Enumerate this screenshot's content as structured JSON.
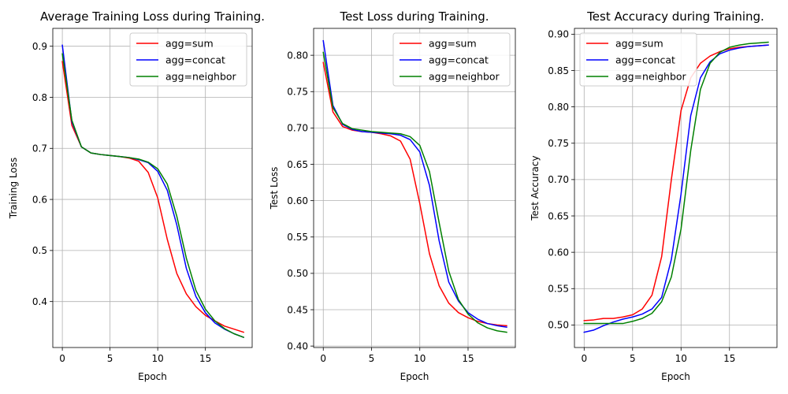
{
  "chart_data": [
    {
      "type": "line",
      "title": "Average Training Loss during Training.",
      "xlabel": "Epoch",
      "ylabel": "Training Loss",
      "xlim": [
        -1,
        19.9
      ],
      "ylim": [
        0.31,
        0.935
      ],
      "xticks": [
        0,
        5,
        10,
        15
      ],
      "yticks": [
        0.4,
        0.5,
        0.6,
        0.7,
        0.8,
        0.9
      ],
      "grid": true,
      "legend_position": "top-right",
      "x": [
        0,
        1,
        2,
        3,
        4,
        5,
        6,
        7,
        8,
        9,
        10,
        11,
        12,
        13,
        14,
        15,
        16,
        17,
        18,
        19
      ],
      "series": [
        {
          "name": "agg=sum",
          "color": "#ff0000",
          "values": [
            0.87,
            0.745,
            0.703,
            0.691,
            0.688,
            0.686,
            0.684,
            0.681,
            0.675,
            0.653,
            0.603,
            0.522,
            0.455,
            0.415,
            0.39,
            0.373,
            0.362,
            0.352,
            0.346,
            0.34
          ]
        },
        {
          "name": "agg=concat",
          "color": "#0000ff",
          "values": [
            0.902,
            0.752,
            0.703,
            0.691,
            0.688,
            0.686,
            0.684,
            0.682,
            0.678,
            0.672,
            0.655,
            0.618,
            0.55,
            0.465,
            0.41,
            0.378,
            0.358,
            0.346,
            0.337,
            0.33
          ]
        },
        {
          "name": "agg=neighbor",
          "color": "#008000",
          "values": [
            0.885,
            0.755,
            0.703,
            0.691,
            0.688,
            0.686,
            0.684,
            0.682,
            0.679,
            0.673,
            0.66,
            0.63,
            0.567,
            0.485,
            0.422,
            0.385,
            0.362,
            0.347,
            0.337,
            0.33
          ]
        }
      ]
    },
    {
      "type": "line",
      "title": "Test Loss during Training.",
      "xlabel": "Epoch",
      "ylabel": "Test Loss",
      "xlim": [
        -1,
        19.9
      ],
      "ylim": [
        0.398,
        0.837
      ],
      "xticks": [
        0,
        5,
        10,
        15
      ],
      "yticks": [
        0.4,
        0.45,
        0.5,
        0.55,
        0.6,
        0.65,
        0.7,
        0.75,
        0.8
      ],
      "grid": true,
      "legend_position": "top-right",
      "x": [
        0,
        1,
        2,
        3,
        4,
        5,
        6,
        7,
        8,
        9,
        10,
        11,
        12,
        13,
        14,
        15,
        16,
        17,
        18,
        19
      ],
      "series": [
        {
          "name": "agg=sum",
          "color": "#ff0000",
          "values": [
            0.79,
            0.722,
            0.702,
            0.697,
            0.695,
            0.694,
            0.692,
            0.689,
            0.682,
            0.657,
            0.596,
            0.527,
            0.483,
            0.459,
            0.446,
            0.439,
            0.434,
            0.431,
            0.429,
            0.428
          ]
        },
        {
          "name": "agg=concat",
          "color": "#0000ff",
          "values": [
            0.82,
            0.731,
            0.705,
            0.698,
            0.695,
            0.694,
            0.693,
            0.692,
            0.69,
            0.684,
            0.667,
            0.621,
            0.545,
            0.488,
            0.462,
            0.446,
            0.437,
            0.431,
            0.428,
            0.426
          ]
        },
        {
          "name": "agg=neighbor",
          "color": "#008000",
          "values": [
            0.804,
            0.728,
            0.706,
            0.699,
            0.697,
            0.695,
            0.694,
            0.693,
            0.692,
            0.688,
            0.676,
            0.64,
            0.57,
            0.503,
            0.464,
            0.444,
            0.432,
            0.425,
            0.421,
            0.419
          ]
        }
      ]
    },
    {
      "type": "line",
      "title": "Test Accuracy during Training.",
      "xlabel": "Epoch",
      "ylabel": "Test Accuracy",
      "xlim": [
        -1,
        19.9
      ],
      "ylim": [
        0.469,
        0.908
      ],
      "xticks": [
        0,
        5,
        10,
        15
      ],
      "yticks": [
        0.5,
        0.55,
        0.6,
        0.65,
        0.7,
        0.75,
        0.8,
        0.85,
        0.9
      ],
      "grid": true,
      "legend_position": "top-left",
      "x": [
        0,
        1,
        2,
        3,
        4,
        5,
        6,
        7,
        8,
        9,
        10,
        11,
        12,
        13,
        14,
        15,
        16,
        17,
        18,
        19
      ],
      "series": [
        {
          "name": "agg=sum",
          "color": "#ff0000",
          "values": [
            0.506,
            0.507,
            0.509,
            0.509,
            0.511,
            0.514,
            0.522,
            0.541,
            0.594,
            0.7,
            0.795,
            0.84,
            0.86,
            0.87,
            0.876,
            0.88,
            0.882,
            0.883,
            0.884,
            0.885
          ]
        },
        {
          "name": "agg=concat",
          "color": "#0000ff",
          "values": [
            0.49,
            0.493,
            0.499,
            0.504,
            0.508,
            0.511,
            0.515,
            0.522,
            0.538,
            0.59,
            0.68,
            0.788,
            0.84,
            0.862,
            0.873,
            0.878,
            0.881,
            0.883,
            0.884,
            0.885
          ]
        },
        {
          "name": "agg=neighbor",
          "color": "#008000",
          "values": [
            0.502,
            0.502,
            0.502,
            0.502,
            0.502,
            0.505,
            0.509,
            0.516,
            0.532,
            0.566,
            0.632,
            0.74,
            0.824,
            0.86,
            0.875,
            0.882,
            0.885,
            0.887,
            0.888,
            0.889
          ]
        }
      ]
    }
  ]
}
